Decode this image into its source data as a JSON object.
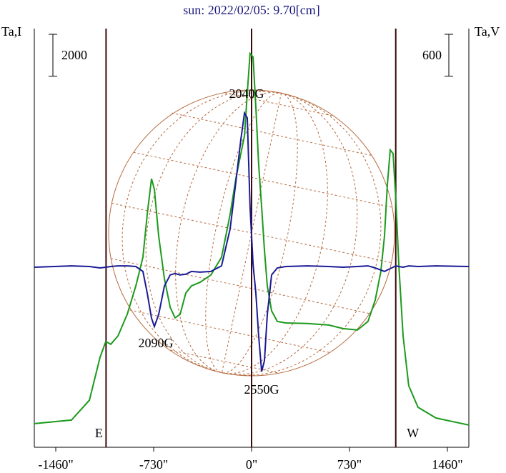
{
  "chart_data": {
    "type": "line",
    "title": "sun: 2022/02/05: 9.70[cm]",
    "y_label": "Ta,I",
    "y2_label": "Ta,V",
    "y_scale_bar": 2000,
    "y2_scale_bar": 600,
    "xlim": [
      -1620,
      1620
    ],
    "xticks": [
      {
        "value": -1460,
        "label": "-1460\""
      },
      {
        "value": -730,
        "label": "-730\""
      },
      {
        "value": 0,
        "label": "0\""
      },
      {
        "value": 730,
        "label": "730\""
      },
      {
        "value": 1460,
        "label": "1460\""
      }
    ],
    "ylim": [
      0,
      20000
    ],
    "y2lim": [
      -2590,
      3410
    ],
    "limb_lines": [
      {
        "value": -1085,
        "label": "E"
      },
      {
        "value": 0
      },
      {
        "value": 1075,
        "label": "W"
      }
    ],
    "annotations": [
      "2040G",
      "2090G",
      "2550G"
    ],
    "x": [
      -1620,
      -1343,
      -1209,
      -1130,
      -1087,
      -1050,
      -996,
      -927,
      -863,
      -810,
      -778,
      -746,
      -725,
      -693,
      -650,
      -607,
      -570,
      -533,
      -490,
      -448,
      -384,
      -304,
      -224,
      -160,
      -117,
      -80,
      -53,
      -32,
      -11,
      11,
      32,
      53,
      75,
      96,
      117,
      149,
      192,
      256,
      416,
      575,
      682,
      789,
      868,
      922,
      964,
      991,
      1012,
      1034,
      1055,
      1076,
      1098,
      1130,
      1172,
      1241,
      1375,
      1620
    ],
    "series": [
      {
        "name": "Ta,I",
        "color": "#1c9a1c",
        "values": [
          1130,
          1300,
          2250,
          4300,
          5050,
          4920,
          5320,
          6350,
          7710,
          9080,
          11130,
          12830,
          12320,
          10100,
          8060,
          6690,
          6180,
          6350,
          7370,
          7710,
          7880,
          8230,
          9080,
          11130,
          12830,
          14030,
          14880,
          16930,
          18810,
          18640,
          16250,
          13520,
          11470,
          9420,
          7710,
          6520,
          6010,
          5940,
          5910,
          5840,
          5670,
          5600,
          6010,
          7030,
          8400,
          10100,
          12490,
          14200,
          14030,
          11810,
          8740,
          5320,
          2940,
          1910,
          1400,
          1060
        ]
      },
      {
        "name": "Ta,V",
        "color": "#1a1a96",
        "axis": "y2",
        "values": [
          -10,
          10,
          0,
          -20,
          -10,
          0,
          10,
          10,
          0,
          -70,
          -380,
          -740,
          -860,
          -690,
          -280,
          -120,
          -100,
          -120,
          -110,
          -70,
          -80,
          -70,
          10,
          540,
          1210,
          1820,
          2200,
          2130,
          850,
          30,
          -380,
          -990,
          -1505,
          -1350,
          -690,
          -120,
          -20,
          0,
          10,
          0,
          -10,
          0,
          10,
          -20,
          -50,
          -70,
          -50,
          -30,
          -10,
          10,
          0,
          -10,
          10,
          0,
          10,
          0
        ]
      }
    ]
  }
}
